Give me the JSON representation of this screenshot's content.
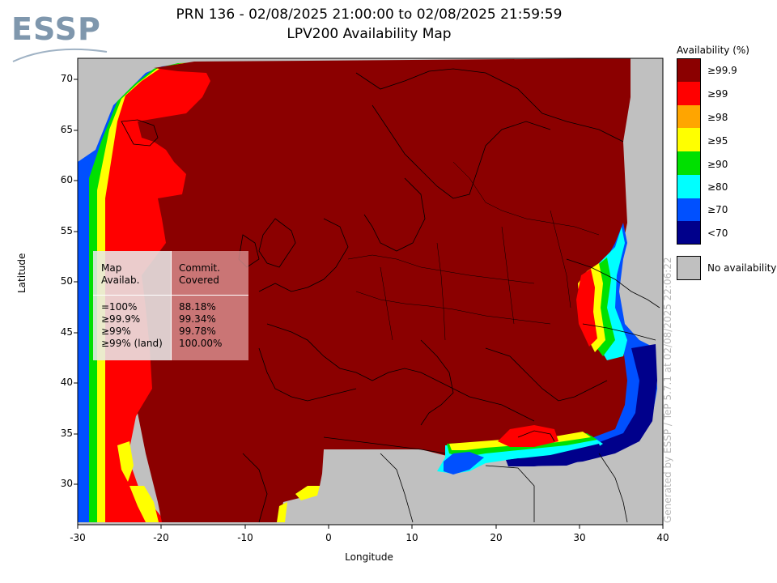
{
  "header": {
    "title_line1": "PRN 136 - 02/08/2025 21:00:00 to 02/08/2025 21:59:59",
    "title_line2": "LPV200 Availability Map",
    "logo_text": "ESSP"
  },
  "map_data": {
    "type": "availability-map",
    "x_axis": {
      "label": "Longitude",
      "range": [
        -30,
        40
      ],
      "ticks": [
        "-30",
        "-20",
        "-10",
        "0",
        "10",
        "20",
        "30",
        "40"
      ]
    },
    "y_axis": {
      "label": "Latitude",
      "range": [
        26,
        72
      ],
      "ticks": [
        "30",
        "35",
        "40",
        "45",
        "50",
        "55",
        "60",
        "65",
        "70"
      ]
    }
  },
  "legend": {
    "title": "Availability (%)",
    "items": [
      {
        "label": "≥99.9",
        "color": "#8b0000"
      },
      {
        "label": "≥99",
        "color": "#ff0000"
      },
      {
        "label": "≥98",
        "color": "#ffa500"
      },
      {
        "label": "≥95",
        "color": "#ffff00"
      },
      {
        "label": "≥90",
        "color": "#00e000"
      },
      {
        "label": "≥80",
        "color": "#00ffff"
      },
      {
        "label": "≥70",
        "color": "#0050ff"
      },
      {
        "label": "<70",
        "color": "#00008b"
      }
    ],
    "no_availability": {
      "label": "No availability",
      "color": "#c0c0c0"
    }
  },
  "stats_table": {
    "header_left": "Map\nAvailab.",
    "header_right": "Commit.\nCovered",
    "rows_left": "=100%\n≥99.9%\n≥99%\n≥99% (land)",
    "rows_right": "88.18%\n99.34%\n99.78%\n100.00%"
  },
  "credit": "Generated by ESSP / TeP 5.7.1 at 02/08/2025 22:06:22"
}
